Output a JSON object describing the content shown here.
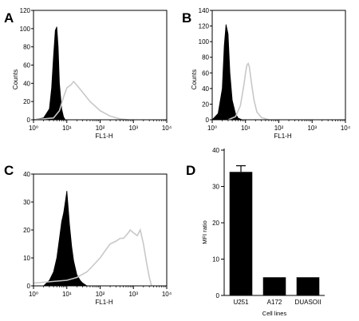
{
  "chart_data": [
    {
      "panel": "A",
      "type": "area",
      "xlabel": "FL1-H",
      "ylabel": "Counts",
      "xscale": "log",
      "xlim": [
        1,
        10000
      ],
      "ylim": [
        0,
        120
      ],
      "xticks": [
        "10⁰",
        "10¹",
        "10²",
        "10³",
        "10⁴"
      ],
      "yticks": [
        "0",
        "20",
        "40",
        "60",
        "80",
        "100",
        "120"
      ],
      "series": [
        {
          "style": "filled-black",
          "x": [
            1,
            2,
            3,
            3.5,
            4,
            4.5,
            5,
            5.5,
            6,
            7,
            8,
            9
          ],
          "y": [
            0,
            2,
            12,
            35,
            70,
            98,
            102,
            80,
            40,
            12,
            3,
            0
          ]
        },
        {
          "style": "outline-gray",
          "x": [
            1,
            4,
            6,
            8,
            10,
            13,
            16,
            20,
            30,
            50,
            100,
            200,
            400,
            700
          ],
          "y": [
            0,
            2,
            10,
            25,
            35,
            38,
            42,
            38,
            30,
            20,
            10,
            4,
            1,
            0
          ]
        }
      ]
    },
    {
      "panel": "B",
      "type": "area",
      "xlabel": "FL1-H",
      "ylabel": "Counts",
      "xscale": "log",
      "xlim": [
        1,
        10000
      ],
      "ylim": [
        0,
        140
      ],
      "xticks": [
        "10⁰",
        "10¹",
        "10²",
        "10³",
        "10⁴"
      ],
      "yticks": [
        "0",
        "20",
        "40",
        "60",
        "80",
        "100",
        "120",
        "140"
      ],
      "series": [
        {
          "style": "filled-black",
          "x": [
            1,
            1.5,
            2,
            2.3,
            2.6,
            3,
            3.4,
            4,
            5,
            6,
            8
          ],
          "y": [
            0,
            8,
            40,
            95,
            122,
            110,
            60,
            25,
            8,
            2,
            0
          ]
        },
        {
          "style": "outline-gray",
          "x": [
            3,
            5,
            7,
            9,
            10,
            11,
            12,
            13,
            15,
            18,
            22,
            30,
            50
          ],
          "y": [
            0,
            4,
            18,
            45,
            60,
            70,
            72,
            68,
            48,
            25,
            10,
            3,
            0
          ]
        }
      ]
    },
    {
      "panel": "C",
      "type": "area",
      "xlabel": "FL1-H",
      "ylabel": "",
      "xscale": "log",
      "xlim": [
        1,
        10000
      ],
      "ylim": [
        0,
        40
      ],
      "xticks": [
        "10⁰",
        "10¹",
        "10²",
        "10³",
        "10⁴"
      ],
      "yticks": [
        "0",
        "10",
        "20",
        "30",
        "40"
      ],
      "series": [
        {
          "style": "filled-black",
          "x": [
            2,
            3,
            4,
            5,
            6,
            7,
            8,
            9,
            10,
            11,
            12,
            14,
            16,
            20,
            25,
            30,
            40
          ],
          "y": [
            0,
            2,
            5,
            10,
            17,
            23,
            26,
            30,
            34,
            28,
            22,
            14,
            9,
            4,
            2,
            1,
            0
          ]
        },
        {
          "style": "outline-gray",
          "x": [
            1,
            10,
            20,
            40,
            70,
            100,
            150,
            200,
            300,
            400,
            500,
            600,
            700,
            800,
            1000,
            1300,
            1600,
            2000,
            2500,
            3000,
            3500
          ],
          "y": [
            1,
            2,
            3,
            5,
            8,
            10,
            13,
            15,
            16,
            17,
            17,
            18,
            19,
            20,
            19,
            18,
            20,
            15,
            8,
            3,
            0
          ]
        }
      ]
    },
    {
      "panel": "D",
      "type": "bar",
      "xlabel": "Cell lines",
      "ylabel": "MFI ratio",
      "categories": [
        "U251",
        "A172",
        "DUASOII"
      ],
      "values": [
        34,
        5,
        5
      ],
      "errors": [
        1.7,
        0,
        0
      ],
      "ylim": [
        0,
        40
      ],
      "yticks": [
        "0",
        "10",
        "20",
        "30",
        "40"
      ]
    }
  ]
}
